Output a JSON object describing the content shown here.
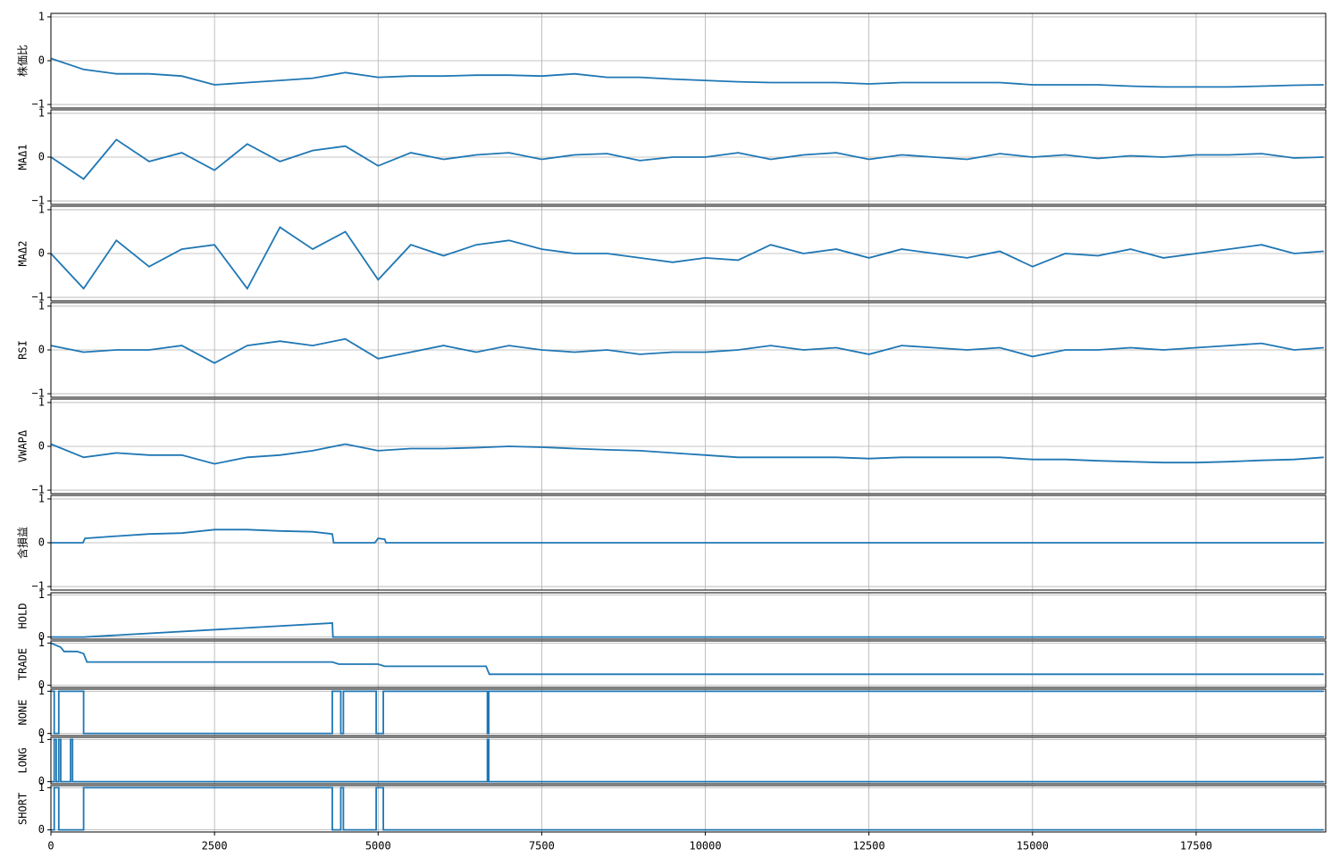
{
  "chart_data": [
    {
      "type": "line",
      "ylabel": "株価比",
      "color": "#1f77b4",
      "grid": true,
      "xlim": [
        0,
        19480
      ],
      "ylim": [
        -1.08,
        1.08
      ],
      "yticks": [
        {
          "value": -1,
          "label": "−1"
        },
        0,
        1
      ],
      "x": [
        0,
        500,
        1000,
        1500,
        2000,
        2500,
        3000,
        3500,
        4000,
        4500,
        5000,
        5500,
        6000,
        6500,
        7000,
        7500,
        8000,
        8500,
        9000,
        9500,
        10000,
        10500,
        11000,
        11500,
        12000,
        12500,
        13000,
        13500,
        14000,
        14500,
        15000,
        15500,
        16000,
        16500,
        17000,
        17500,
        18000,
        18500,
        19000,
        19450
      ],
      "values": [
        0.05,
        -0.2,
        -0.3,
        -0.3,
        -0.35,
        -0.55,
        -0.5,
        -0.45,
        -0.4,
        -0.27,
        -0.38,
        -0.35,
        -0.35,
        -0.33,
        -0.33,
        -0.35,
        -0.3,
        -0.38,
        -0.38,
        -0.42,
        -0.45,
        -0.48,
        -0.5,
        -0.5,
        -0.5,
        -0.53,
        -0.5,
        -0.5,
        -0.5,
        -0.5,
        -0.55,
        -0.55,
        -0.55,
        -0.58,
        -0.6,
        -0.6,
        -0.6,
        -0.58,
        -0.56,
        -0.55
      ]
    },
    {
      "type": "line",
      "ylabel": "MAΔ1",
      "color": "#1f77b4",
      "grid": true,
      "xlim": [
        0,
        19480
      ],
      "ylim": [
        -1.08,
        1.08
      ],
      "yticks": [
        {
          "value": -1,
          "label": "−1"
        },
        0,
        1
      ],
      "x": [
        0,
        500,
        1000,
        1500,
        2000,
        2500,
        3000,
        3500,
        4000,
        4500,
        5000,
        5500,
        6000,
        6500,
        7000,
        7500,
        8000,
        8500,
        9000,
        9500,
        10000,
        10500,
        11000,
        11500,
        12000,
        12500,
        13000,
        13500,
        14000,
        14500,
        15000,
        15500,
        16000,
        16500,
        17000,
        17500,
        18000,
        18500,
        19000,
        19450
      ],
      "values": [
        0,
        -0.5,
        0.4,
        -0.1,
        0.1,
        -0.3,
        0.3,
        -0.1,
        0.15,
        0.25,
        -0.2,
        0.1,
        -0.05,
        0.05,
        0.1,
        -0.05,
        0.05,
        0.08,
        -0.08,
        0,
        0,
        0.1,
        -0.05,
        0.05,
        0.1,
        -0.05,
        0.05,
        0,
        -0.05,
        0.08,
        0,
        0.05,
        -0.03,
        0.03,
        0,
        0.05,
        0.05,
        0.08,
        -0.02,
        0
      ]
    },
    {
      "type": "line",
      "ylabel": "MAΔ2",
      "color": "#1f77b4",
      "grid": true,
      "xlim": [
        0,
        19480
      ],
      "ylim": [
        -1.08,
        1.08
      ],
      "yticks": [
        {
          "value": -1,
          "label": "−1"
        },
        0,
        1
      ],
      "x": [
        0,
        500,
        1000,
        1500,
        2000,
        2500,
        3000,
        3500,
        4000,
        4500,
        5000,
        5500,
        6000,
        6500,
        7000,
        7500,
        8000,
        8500,
        9000,
        9500,
        10000,
        10500,
        11000,
        11500,
        12000,
        12500,
        13000,
        13500,
        14000,
        14500,
        15000,
        15500,
        16000,
        16500,
        17000,
        17500,
        18000,
        18500,
        19000,
        19450
      ],
      "values": [
        0,
        -0.8,
        0.3,
        -0.3,
        0.1,
        0.2,
        -0.8,
        0.6,
        0.1,
        0.5,
        -0.6,
        0.2,
        -0.05,
        0.2,
        0.3,
        0.1,
        0,
        0,
        -0.1,
        -0.2,
        -0.1,
        -0.15,
        0.2,
        0,
        0.1,
        -0.1,
        0.1,
        0,
        -0.1,
        0.05,
        -0.3,
        0,
        -0.05,
        0.1,
        -0.1,
        0,
        0.1,
        0.2,
        0,
        0.05
      ]
    },
    {
      "type": "line",
      "ylabel": "RSI",
      "color": "#1f77b4",
      "grid": true,
      "xlim": [
        0,
        19480
      ],
      "ylim": [
        -1.08,
        1.08
      ],
      "yticks": [
        {
          "value": -1,
          "label": "−1"
        },
        0,
        1
      ],
      "x": [
        0,
        500,
        1000,
        1500,
        2000,
        2500,
        3000,
        3500,
        4000,
        4500,
        5000,
        5500,
        6000,
        6500,
        7000,
        7500,
        8000,
        8500,
        9000,
        9500,
        10000,
        10500,
        11000,
        11500,
        12000,
        12500,
        13000,
        13500,
        14000,
        14500,
        15000,
        15500,
        16000,
        16500,
        17000,
        17500,
        18000,
        18500,
        19000,
        19450
      ],
      "values": [
        0.1,
        -0.05,
        0,
        0,
        0.1,
        -0.3,
        0.1,
        0.2,
        0.1,
        0.25,
        -0.2,
        -0.05,
        0.1,
        -0.05,
        0.1,
        0,
        -0.05,
        0,
        -0.1,
        -0.05,
        -0.05,
        0,
        0.1,
        0,
        0.05,
        -0.1,
        0.1,
        0.05,
        0,
        0.05,
        -0.15,
        0,
        0,
        0.05,
        0,
        0.05,
        0.1,
        0.15,
        0,
        0.05
      ]
    },
    {
      "type": "line",
      "ylabel": "VWAPΔ",
      "color": "#1f77b4",
      "grid": true,
      "xlim": [
        0,
        19480
      ],
      "ylim": [
        -1.08,
        1.08
      ],
      "yticks": [
        {
          "value": -1,
          "label": "−1"
        },
        0,
        1
      ],
      "x": [
        0,
        500,
        1000,
        1500,
        2000,
        2500,
        3000,
        3500,
        4000,
        4500,
        5000,
        5500,
        6000,
        6500,
        7000,
        7500,
        8000,
        8500,
        9000,
        9500,
        10000,
        10500,
        11000,
        11500,
        12000,
        12500,
        13000,
        13500,
        14000,
        14500,
        15000,
        15500,
        16000,
        16500,
        17000,
        17500,
        18000,
        18500,
        19000,
        19450
      ],
      "values": [
        0.05,
        -0.25,
        -0.15,
        -0.2,
        -0.2,
        -0.4,
        -0.25,
        -0.2,
        -0.1,
        0.05,
        -0.1,
        -0.05,
        -0.05,
        -0.03,
        0,
        -0.02,
        -0.05,
        -0.08,
        -0.1,
        -0.15,
        -0.2,
        -0.25,
        -0.25,
        -0.25,
        -0.25,
        -0.28,
        -0.25,
        -0.25,
        -0.25,
        -0.25,
        -0.3,
        -0.3,
        -0.33,
        -0.35,
        -0.37,
        -0.37,
        -0.35,
        -0.32,
        -0.3,
        -0.25
      ]
    },
    {
      "type": "line",
      "ylabel": "含損益",
      "color": "#1f77b4",
      "grid": true,
      "xlim": [
        0,
        19480
      ],
      "ylim": [
        -1.08,
        1.08
      ],
      "yticks": [
        {
          "value": -1,
          "label": "−1"
        },
        0,
        1
      ],
      "x": [
        0,
        490,
        520,
        1000,
        1500,
        2000,
        2500,
        3000,
        3500,
        4000,
        4300,
        4320,
        4950,
        5000,
        5100,
        5120,
        19450
      ],
      "values": [
        0,
        0,
        0.1,
        0.15,
        0.2,
        0.22,
        0.3,
        0.3,
        0.27,
        0.25,
        0.2,
        0,
        0,
        0.1,
        0.08,
        0,
        0
      ]
    },
    {
      "type": "line",
      "ylabel": "HOLD",
      "color": "#1f77b4",
      "grid": true,
      "xlim": [
        0,
        19480
      ],
      "ylim": [
        -0.05,
        1.05
      ],
      "yticks": [
        0,
        1
      ],
      "x": [
        0,
        500,
        4300,
        4310,
        19450
      ],
      "values": [
        0,
        0,
        0.33,
        0,
        0
      ]
    },
    {
      "type": "line",
      "ylabel": "TRADE",
      "color": "#1f77b4",
      "grid": true,
      "xlim": [
        0,
        19480
      ],
      "ylim": [
        -0.05,
        1.05
      ],
      "yticks": [
        0,
        1
      ],
      "x": [
        0,
        150,
        200,
        400,
        500,
        550,
        4300,
        4400,
        5000,
        5100,
        6650,
        6700,
        19450
      ],
      "values": [
        1,
        0.9,
        0.8,
        0.8,
        0.75,
        0.55,
        0.55,
        0.5,
        0.5,
        0.45,
        0.45,
        0.26,
        0.26
      ]
    },
    {
      "type": "line",
      "ylabel": "NONE",
      "color": "#1f77b4",
      "grid": true,
      "xlim": [
        0,
        19480
      ],
      "ylim": [
        -0.05,
        1.05
      ],
      "yticks": [
        0,
        1
      ],
      "x": [
        0,
        50,
        50,
        120,
        120,
        500,
        500,
        4300,
        4300,
        4430,
        4430,
        4470,
        4470,
        4970,
        4970,
        5080,
        5080,
        6670,
        6670,
        6690,
        6690,
        19450
      ],
      "values": [
        1,
        1,
        0,
        0,
        1,
        1,
        0,
        0,
        1,
        1,
        0,
        0,
        1,
        1,
        0,
        0,
        1,
        1,
        0,
        0,
        1,
        1
      ]
    },
    {
      "type": "line",
      "ylabel": "LONG",
      "color": "#1f77b4",
      "grid": true,
      "xlim": [
        0,
        19480
      ],
      "ylim": [
        -0.05,
        1.05
      ],
      "yticks": [
        0,
        1
      ],
      "x": [
        0,
        50,
        50,
        80,
        80,
        120,
        120,
        150,
        150,
        300,
        300,
        330,
        330,
        6670,
        6670,
        6690,
        6690,
        19450
      ],
      "values": [
        0,
        0,
        1,
        1,
        0,
        0,
        1,
        1,
        0,
        0,
        1,
        1,
        0,
        0,
        1,
        1,
        0,
        0
      ]
    },
    {
      "type": "line",
      "ylabel": "SHORT",
      "color": "#1f77b4",
      "grid": true,
      "xlim": [
        0,
        19480
      ],
      "ylim": [
        -0.05,
        1.05
      ],
      "yticks": [
        0,
        1
      ],
      "xticks": [
        0,
        2500,
        5000,
        7500,
        10000,
        12500,
        15000,
        17500
      ],
      "x": [
        0,
        50,
        50,
        120,
        120,
        500,
        500,
        4300,
        4300,
        4430,
        4430,
        4470,
        4470,
        4970,
        4970,
        5080,
        5080,
        19450
      ],
      "values": [
        0,
        0,
        1,
        1,
        0,
        0,
        1,
        1,
        0,
        0,
        1,
        1,
        0,
        0,
        1,
        1,
        0,
        0
      ]
    }
  ]
}
